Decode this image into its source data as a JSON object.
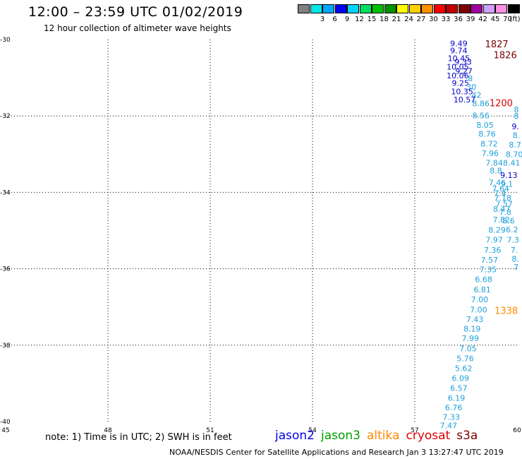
{
  "header": {
    "title": "12:00 – 23:59 UTC 01/02/2019",
    "subtitle": "12 hour collection of altimeter wave heights"
  },
  "scale": {
    "unit_label": "(ft)",
    "bins": [
      {
        "color": "#808080",
        "label": ""
      },
      {
        "color": "#00e5e5",
        "label": "3"
      },
      {
        "color": "#00a5ff",
        "label": "6"
      },
      {
        "color": "#0000ee",
        "label": "9"
      },
      {
        "color": "#00d3ff",
        "label": "12"
      },
      {
        "color": "#00e060",
        "label": "15"
      },
      {
        "color": "#00c000",
        "label": "18"
      },
      {
        "color": "#009000",
        "label": "21"
      },
      {
        "color": "#ffff00",
        "label": "24"
      },
      {
        "color": "#ffd000",
        "label": "27"
      },
      {
        "color": "#ff9000",
        "label": "30"
      },
      {
        "color": "#ff0000",
        "label": "33"
      },
      {
        "color": "#c00000",
        "label": "36"
      },
      {
        "color": "#800000",
        "label": "39"
      },
      {
        "color": "#a000a0",
        "label": "42"
      },
      {
        "color": "#d0a0ff",
        "label": "45"
      },
      {
        "color": "#ff90e0",
        "label": "70"
      },
      {
        "color": "#000000",
        "label": ""
      }
    ]
  },
  "map": {
    "lon_range": [
      45,
      60
    ],
    "lat_range": [
      -40,
      -30
    ],
    "lon_ticks": [
      {
        "v": 45,
        "label": "45"
      },
      {
        "v": 48,
        "label": "48"
      },
      {
        "v": 51,
        "label": "51"
      },
      {
        "v": 54,
        "label": "54"
      },
      {
        "v": 57,
        "label": "57"
      },
      {
        "v": 60,
        "label": "60"
      }
    ],
    "lat_ticks": [
      {
        "v": -30,
        "label": "-30"
      },
      {
        "v": -32,
        "label": "-32"
      },
      {
        "v": -34,
        "label": "-34"
      },
      {
        "v": -36,
        "label": "-36"
      },
      {
        "v": -38,
        "label": "-38"
      },
      {
        "v": -40,
        "label": "-40"
      }
    ],
    "colors": {
      "light": "#1ea0dc",
      "dark": "#0000c8",
      "red": "#dd0000",
      "maroon": "#7a0000",
      "orange": "#ff8800"
    },
    "observations": [
      {
        "lon": 58.29,
        "lat": -30.1,
        "text": "9.49",
        "c": "dark"
      },
      {
        "lon": 58.29,
        "lat": -30.29,
        "text": "9.74",
        "c": "dark"
      },
      {
        "lon": 58.29,
        "lat": -30.49,
        "text": "10.45",
        "c": "dark"
      },
      {
        "lon": 58.42,
        "lat": -30.58,
        "text": "9.33",
        "c": "dark"
      },
      {
        "lon": 58.26,
        "lat": -30.71,
        "text": "10.05",
        "c": "dark"
      },
      {
        "lon": 58.44,
        "lat": -30.82,
        "text": "9.27",
        "c": "dark"
      },
      {
        "lon": 58.26,
        "lat": -30.94,
        "text": "10.06",
        "c": "dark"
      },
      {
        "lon": 58.63,
        "lat": -31.02,
        "text": "8",
        "c": "light"
      },
      {
        "lon": 58.34,
        "lat": -31.14,
        "text": "9.25",
        "c": "dark"
      },
      {
        "lon": 58.66,
        "lat": -31.24,
        "text": "30",
        "c": "light"
      },
      {
        "lon": 58.39,
        "lat": -31.36,
        "text": "10.35",
        "c": "dark"
      },
      {
        "lon": 58.81,
        "lat": -31.45,
        "text": "42",
        "c": "light"
      },
      {
        "lon": 58.46,
        "lat": -31.57,
        "text": "10.57",
        "c": "dark"
      },
      {
        "lon": 58.94,
        "lat": -31.67,
        "text": "8.86",
        "c": "light"
      },
      {
        "lon": 58.94,
        "lat": -31.99,
        "text": "8.56",
        "c": "light"
      },
      {
        "lon": 59.06,
        "lat": -32.24,
        "text": "8.05",
        "c": "light"
      },
      {
        "lon": 59.12,
        "lat": -32.47,
        "text": "8.76",
        "c": "light"
      },
      {
        "lon": 59.18,
        "lat": -32.73,
        "text": "8.72",
        "c": "light"
      },
      {
        "lon": 59.21,
        "lat": -32.98,
        "text": "7.96",
        "c": "light"
      },
      {
        "lon": 59.33,
        "lat": -33.23,
        "text": "7.84",
        "c": "light"
      },
      {
        "lon": 59.38,
        "lat": -33.43,
        "text": "8.8",
        "c": "light"
      },
      {
        "lon": 59.42,
        "lat": -33.74,
        "text": "7.46",
        "c": "light"
      },
      {
        "lon": 59.52,
        "lat": -33.9,
        "text": "7.64",
        "c": "light"
      },
      {
        "lon": 59.5,
        "lat": -34.02,
        "text": "7.4",
        "c": "light"
      },
      {
        "lon": 59.58,
        "lat": -34.14,
        "text": "7.18",
        "c": "light"
      },
      {
        "lon": 59.62,
        "lat": -34.3,
        "text": "7.57",
        "c": "light"
      },
      {
        "lon": 59.55,
        "lat": -34.44,
        "text": "8.47",
        "c": "light"
      },
      {
        "lon": 59.65,
        "lat": -34.52,
        "text": "7.8",
        "c": "light"
      },
      {
        "lon": 59.54,
        "lat": -34.71,
        "text": "7.82",
        "c": "light"
      },
      {
        "lon": 59.75,
        "lat": -34.74,
        "text": "8.6",
        "c": "light"
      },
      {
        "lon": 59.41,
        "lat": -34.98,
        "text": "8.29",
        "c": "light"
      },
      {
        "lon": 59.85,
        "lat": -34.97,
        "text": "6.2",
        "c": "light"
      },
      {
        "lon": 59.33,
        "lat": -35.24,
        "text": "7.97",
        "c": "light"
      },
      {
        "lon": 59.88,
        "lat": -35.24,
        "text": "7.3",
        "c": "light"
      },
      {
        "lon": 59.28,
        "lat": -35.51,
        "text": "7.36",
        "c": "light"
      },
      {
        "lon": 59.92,
        "lat": -35.51,
        "text": "7.",
        "c": "light"
      },
      {
        "lon": 59.19,
        "lat": -35.77,
        "text": "7.57",
        "c": "light"
      },
      {
        "lon": 59.95,
        "lat": -35.74,
        "text": "8.",
        "c": "light"
      },
      {
        "lon": 59.15,
        "lat": -36.02,
        "text": "7.35",
        "c": "light"
      },
      {
        "lon": 59.97,
        "lat": -35.95,
        "text": "7",
        "c": "light"
      },
      {
        "lon": 59.02,
        "lat": -36.28,
        "text": "6.68",
        "c": "light"
      },
      {
        "lon": 58.98,
        "lat": -36.54,
        "text": "6.81",
        "c": "light"
      },
      {
        "lon": 58.9,
        "lat": -36.8,
        "text": "7.00",
        "c": "light"
      },
      {
        "lon": 58.87,
        "lat": -37.07,
        "text": "7.00",
        "c": "light"
      },
      {
        "lon": 58.76,
        "lat": -37.32,
        "text": "7.43",
        "c": "light"
      },
      {
        "lon": 58.68,
        "lat": -37.57,
        "text": "8.19",
        "c": "light"
      },
      {
        "lon": 58.63,
        "lat": -37.82,
        "text": "7.99",
        "c": "light"
      },
      {
        "lon": 58.56,
        "lat": -38.09,
        "text": "7.05",
        "c": "light"
      },
      {
        "lon": 58.48,
        "lat": -38.35,
        "text": "5.76",
        "c": "light"
      },
      {
        "lon": 58.43,
        "lat": -38.6,
        "text": "5.62",
        "c": "light"
      },
      {
        "lon": 58.34,
        "lat": -38.86,
        "text": "6.09",
        "c": "light"
      },
      {
        "lon": 58.29,
        "lat": -39.12,
        "text": "6.57",
        "c": "light"
      },
      {
        "lon": 58.22,
        "lat": -39.38,
        "text": "6.19",
        "c": "light"
      },
      {
        "lon": 58.14,
        "lat": -39.63,
        "text": "6.76",
        "c": "light"
      },
      {
        "lon": 58.07,
        "lat": -39.88,
        "text": "7.33",
        "c": "light"
      },
      {
        "lon": 57.99,
        "lat": -40.1,
        "text": "7.47",
        "c": "light"
      },
      {
        "lon": 59.98,
        "lat": -31.83,
        "text": "8",
        "c": "light"
      },
      {
        "lon": 59.98,
        "lat": -32.0,
        "text": "8",
        "c": "light"
      },
      {
        "lon": 59.95,
        "lat": -32.27,
        "text": "9.",
        "c": "dark"
      },
      {
        "lon": 59.98,
        "lat": -32.5,
        "text": "8.",
        "c": "light"
      },
      {
        "lon": 59.94,
        "lat": -32.75,
        "text": "8.7",
        "c": "light"
      },
      {
        "lon": 59.92,
        "lat": -33.0,
        "text": "8.70",
        "c": "light"
      },
      {
        "lon": 59.84,
        "lat": -33.23,
        "text": "8.41",
        "c": "light"
      },
      {
        "lon": 59.76,
        "lat": -33.55,
        "text": "9.13",
        "c": "dark"
      },
      {
        "lon": 59.7,
        "lat": -33.78,
        "text": "9.1",
        "c": "light"
      }
    ],
    "labels": [
      {
        "lon": 59.06,
        "lat": -30.11,
        "text": "1827",
        "c": "maroon"
      },
      {
        "lon": 59.31,
        "lat": -30.4,
        "text": "1826",
        "c": "maroon"
      },
      {
        "lon": 59.19,
        "lat": -31.65,
        "text": "1200",
        "c": "red"
      },
      {
        "lon": 59.34,
        "lat": -37.09,
        "text": "1338",
        "c": "orange"
      }
    ]
  },
  "footer": {
    "note": "note: 1) Time is in UTC; 2) SWH is in feet",
    "satellites": [
      {
        "name": "jason2",
        "color": "#0000ee"
      },
      {
        "name": "jason3",
        "color": "#00a000"
      },
      {
        "name": "altika",
        "color": "#ff8800"
      },
      {
        "name": "cryosat",
        "color": "#dd0000"
      },
      {
        "name": "s3a",
        "color": "#7a0000"
      }
    ],
    "credit": "NOAA/NESDIS Center for Satellite Applications and Research   Jan  3 13:27:47 UTC 2019"
  }
}
